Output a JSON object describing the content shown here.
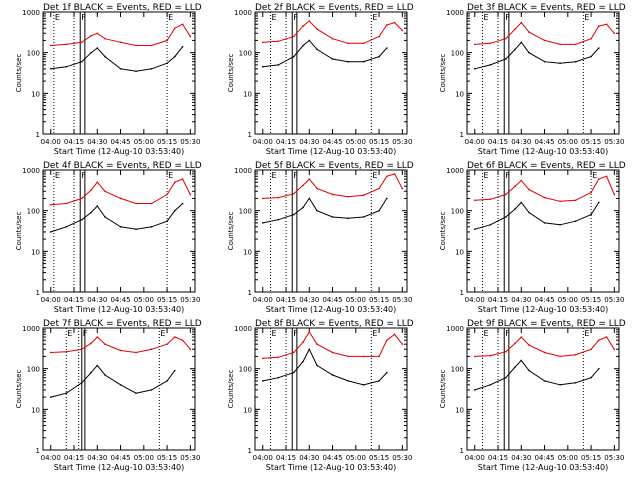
{
  "colors": {
    "events": "#000000",
    "lld": "#e00000",
    "axis": "#000000"
  },
  "common": {
    "xlabel": "Start Time (12-Aug-10 03:53:40)",
    "ylabel": "Counts/sec",
    "x_tick_labels": [
      "04:00",
      "04:15",
      "04:30",
      "04:45",
      "05:00",
      "05:15",
      "05:30"
    ],
    "y_tick_labels": [
      "1",
      "10",
      "100",
      "1000"
    ],
    "marker_labels": [
      "E",
      "F",
      "E"
    ]
  },
  "chart_data": [
    {
      "type": "line",
      "title": "Det 1f BLACK = Events, RED = LLD",
      "xlabel": "Start Time (12-Aug-10 03:53:40)",
      "ylabel": "Counts/sec",
      "x_range": [
        "03:55",
        "05:33"
      ],
      "ylim": [
        1,
        1000
      ],
      "log_y": true,
      "x": [
        "04:00",
        "04:10",
        "04:20",
        "04:26",
        "04:30",
        "04:35",
        "04:45",
        "04:55",
        "05:05",
        "05:15",
        "05:20",
        "05:25",
        "05:30"
      ],
      "series": [
        {
          "name": "BLACK = Events",
          "values": [
            40,
            45,
            60,
            100,
            130,
            80,
            40,
            35,
            40,
            55,
            80,
            140,
            null
          ]
        },
        {
          "name": "RED = LLD",
          "values": [
            150,
            160,
            180,
            260,
            300,
            220,
            180,
            150,
            150,
            200,
            400,
            500,
            250
          ]
        }
      ],
      "event_lines": {
        "dotted": [
          "04:02",
          "04:15",
          "05:15"
        ],
        "solid": [
          "04:19",
          "04:22"
        ]
      },
      "markers": [
        "E",
        "F",
        "E"
      ]
    },
    {
      "type": "line",
      "title": "Det 2f BLACK = Events, RED = LLD",
      "xlabel": "Start Time (12-Aug-10 03:53:40)",
      "ylabel": "Counts/sec",
      "x_range": [
        "03:55",
        "05:33"
      ],
      "ylim": [
        1,
        1000
      ],
      "log_y": true,
      "x": [
        "04:00",
        "04:10",
        "04:20",
        "04:26",
        "04:30",
        "04:35",
        "04:45",
        "04:55",
        "05:05",
        "05:15",
        "05:20",
        "05:25",
        "05:30"
      ],
      "series": [
        {
          "name": "BLACK = Events",
          "values": [
            45,
            50,
            80,
            150,
            200,
            120,
            70,
            60,
            60,
            80,
            130,
            null,
            null
          ]
        },
        {
          "name": "RED = LLD",
          "values": [
            180,
            190,
            250,
            450,
            600,
            380,
            220,
            170,
            170,
            250,
            480,
            550,
            350
          ]
        }
      ],
      "event_lines": {
        "dotted": [
          "04:05",
          "04:15",
          "05:10"
        ],
        "solid": [
          "04:19",
          "04:22"
        ]
      },
      "markers": [
        "E",
        "F",
        "E"
      ]
    },
    {
      "type": "line",
      "title": "Det 3f BLACK = Events, RED = LLD",
      "xlabel": "Start Time (12-Aug-10 03:53:40)",
      "ylabel": "Counts/sec",
      "x_range": [
        "03:55",
        "05:33"
      ],
      "ylim": [
        1,
        1000
      ],
      "log_y": true,
      "x": [
        "04:00",
        "04:10",
        "04:20",
        "04:26",
        "04:30",
        "04:35",
        "04:45",
        "04:55",
        "05:05",
        "05:15",
        "05:20",
        "05:25",
        "05:30"
      ],
      "series": [
        {
          "name": "BLACK = Events",
          "values": [
            40,
            50,
            70,
            120,
            180,
            100,
            60,
            55,
            60,
            80,
            130,
            null,
            null
          ]
        },
        {
          "name": "RED = LLD",
          "values": [
            160,
            170,
            220,
            380,
            550,
            320,
            200,
            160,
            160,
            220,
            450,
            500,
            300
          ]
        }
      ],
      "event_lines": {
        "dotted": [
          "04:05",
          "04:15",
          "05:10"
        ],
        "solid": [
          "04:19",
          "04:22"
        ]
      },
      "markers": [
        "E",
        "F",
        "E"
      ]
    },
    {
      "type": "line",
      "title": "Det 4f BLACK = Events, RED = LLD",
      "xlabel": "Start Time (12-Aug-10 03:53:40)",
      "ylabel": "Counts/sec",
      "x_range": [
        "03:55",
        "05:33"
      ],
      "ylim": [
        1,
        1000
      ],
      "log_y": true,
      "x": [
        "04:00",
        "04:10",
        "04:20",
        "04:26",
        "04:30",
        "04:35",
        "04:45",
        "04:55",
        "05:05",
        "05:15",
        "05:20",
        "05:25",
        "05:30"
      ],
      "series": [
        {
          "name": "BLACK = Events",
          "values": [
            30,
            40,
            60,
            90,
            130,
            70,
            40,
            35,
            40,
            55,
            100,
            150,
            null
          ]
        },
        {
          "name": "RED = LLD",
          "values": [
            140,
            150,
            200,
            320,
            500,
            300,
            200,
            150,
            150,
            250,
            500,
            600,
            250
          ]
        }
      ],
      "event_lines": {
        "dotted": [
          "04:02",
          "04:15",
          "05:15"
        ],
        "solid": [
          "04:19",
          "04:22"
        ]
      },
      "markers": [
        "E",
        "F",
        "E"
      ]
    },
    {
      "type": "line",
      "title": "Det 5f BLACK = Events, RED = LLD",
      "xlabel": "Start Time (12-Aug-10 03:53:40)",
      "ylabel": "Counts/sec",
      "x_range": [
        "03:55",
        "05:33"
      ],
      "ylim": [
        1,
        1000
      ],
      "log_y": true,
      "x": [
        "04:00",
        "04:10",
        "04:20",
        "04:26",
        "04:30",
        "04:35",
        "04:45",
        "04:55",
        "05:05",
        "05:15",
        "05:20",
        "05:25",
        "05:30"
      ],
      "series": [
        {
          "name": "BLACK = Events",
          "values": [
            50,
            60,
            80,
            120,
            200,
            100,
            70,
            65,
            70,
            100,
            200,
            null,
            null
          ]
        },
        {
          "name": "RED = LLD",
          "values": [
            200,
            210,
            260,
            420,
            600,
            350,
            250,
            220,
            240,
            350,
            700,
            800,
            350
          ]
        }
      ],
      "event_lines": {
        "dotted": [
          "04:05",
          "04:15",
          "05:10"
        ],
        "solid": [
          "04:19",
          "04:22"
        ]
      },
      "markers": [
        "E",
        "F",
        "E"
      ]
    },
    {
      "type": "line",
      "title": "Det 6f BLACK = Events, RED = LLD",
      "xlabel": "Start Time (12-Aug-10 03:53:40)",
      "ylabel": "Counts/sec",
      "x_range": [
        "03:55",
        "05:33"
      ],
      "ylim": [
        1,
        1000
      ],
      "log_y": true,
      "x": [
        "04:00",
        "04:10",
        "04:20",
        "04:26",
        "04:30",
        "04:35",
        "04:45",
        "04:55",
        "05:05",
        "05:15",
        "05:20",
        "05:25",
        "05:30"
      ],
      "series": [
        {
          "name": "BLACK = Events",
          "values": [
            35,
            45,
            70,
            110,
            160,
            90,
            50,
            45,
            55,
            80,
            160,
            null,
            null
          ]
        },
        {
          "name": "RED = LLD",
          "values": [
            180,
            190,
            250,
            400,
            550,
            330,
            210,
            170,
            180,
            280,
            600,
            700,
            250
          ]
        }
      ],
      "event_lines": {
        "dotted": [
          "04:05",
          "04:15",
          "05:15"
        ],
        "solid": [
          "04:19",
          "04:22"
        ]
      },
      "markers": [
        "E",
        "F",
        "E"
      ]
    },
    {
      "type": "line",
      "title": "Det 7f BLACK = Events, RED = LLD",
      "xlabel": "Start Time (12-Aug-10 03:53:40)",
      "ylabel": "Counts/sec",
      "x_range": [
        "03:55",
        "05:33"
      ],
      "ylim": [
        1,
        1000
      ],
      "log_y": true,
      "x": [
        "04:00",
        "04:10",
        "04:20",
        "04:26",
        "04:30",
        "04:35",
        "04:45",
        "04:55",
        "05:05",
        "05:15",
        "05:20",
        "05:25",
        "05:30"
      ],
      "series": [
        {
          "name": "BLACK = Events",
          "values": [
            20,
            25,
            45,
            80,
            120,
            70,
            40,
            25,
            30,
            50,
            90,
            null,
            null
          ]
        },
        {
          "name": "RED = LLD",
          "values": [
            250,
            260,
            300,
            420,
            600,
            400,
            280,
            250,
            300,
            400,
            600,
            500,
            300
          ]
        }
      ],
      "event_lines": {
        "dotted": [
          "04:10",
          "04:18",
          "05:10"
        ],
        "solid": [
          "04:20",
          "04:22"
        ]
      },
      "markers": [
        "E",
        "F",
        "E"
      ]
    },
    {
      "type": "line",
      "title": "Det 8f BLACK = Events, RED = LLD",
      "xlabel": "Start Time (12-Aug-10 03:53:40)",
      "ylabel": "Counts/sec",
      "x_range": [
        "03:55",
        "05:33"
      ],
      "ylim": [
        1,
        1000
      ],
      "log_y": true,
      "x": [
        "04:00",
        "04:10",
        "04:20",
        "04:26",
        "04:30",
        "04:35",
        "04:45",
        "04:55",
        "05:05",
        "05:15",
        "05:20",
        "05:25",
        "05:30"
      ],
      "series": [
        {
          "name": "BLACK = Events",
          "values": [
            50,
            60,
            80,
            150,
            300,
            120,
            70,
            50,
            40,
            50,
            80,
            null,
            null
          ]
        },
        {
          "name": "RED = LLD",
          "values": [
            180,
            190,
            250,
            450,
            800,
            400,
            250,
            200,
            200,
            200,
            500,
            700,
            400
          ]
        }
      ],
      "event_lines": {
        "dotted": [
          "04:05",
          "04:15",
          "05:10"
        ],
        "solid": [
          "04:19",
          "04:22"
        ]
      },
      "markers": [
        "E",
        "F",
        "E"
      ]
    },
    {
      "type": "line",
      "title": "Det 9f BLACK = Events, RED = LLD",
      "xlabel": "Start Time (12-Aug-10 03:53:40)",
      "ylabel": "Counts/sec",
      "x_range": [
        "03:55",
        "05:33"
      ],
      "ylim": [
        1,
        1000
      ],
      "log_y": true,
      "x": [
        "04:00",
        "04:10",
        "04:20",
        "04:26",
        "04:30",
        "04:35",
        "04:45",
        "04:55",
        "05:05",
        "05:15",
        "05:20",
        "05:25",
        "05:30"
      ],
      "series": [
        {
          "name": "BLACK = Events",
          "values": [
            30,
            40,
            60,
            110,
            160,
            90,
            50,
            40,
            45,
            60,
            100,
            null,
            null
          ]
        },
        {
          "name": "RED = LLD",
          "values": [
            200,
            210,
            260,
            420,
            600,
            380,
            250,
            200,
            220,
            300,
            500,
            600,
            300
          ]
        }
      ],
      "event_lines": {
        "dotted": [
          "04:05",
          "04:15",
          "05:10"
        ],
        "solid": [
          "04:19",
          "04:22"
        ]
      },
      "markers": [
        "E",
        "F",
        "E"
      ]
    }
  ]
}
